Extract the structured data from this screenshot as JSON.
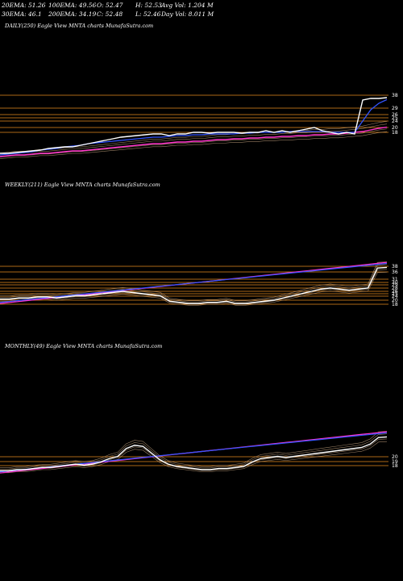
{
  "header": {
    "ema20": "20EMA: 51.26",
    "ema100": "100EMA: 49.56",
    "open": "O: 52.47",
    "high": "H: 52.53",
    "avgvol": "Avg Vol: 1.204 M",
    "ema30": "30EMA: 46.1",
    "ema200": "200EMA: 34.19",
    "close": "C: 52.48",
    "low": "L: 52.46",
    "dayvol": "Day Vol: 8.011 M"
  },
  "panels": {
    "daily": {
      "title": "DAILY(250) Eagle   View  MNTA charts MunafaSutra.com"
    },
    "weekly": {
      "title": "WEEKLY(211) Eagle   View  MNTA charts MunafaSutra.com"
    },
    "monthly": {
      "title": "MONTHLY(49) Eagle   View  MNTA charts MunafaSutra.com"
    }
  },
  "colors": {
    "background": "#000000",
    "price": "#ffffff",
    "ema_fast": "#3355ff",
    "ema_slow": "#ff33cc",
    "level_lines": "#cc7a1a",
    "ma_thin": "#d9b38c"
  },
  "chart_data": [
    {
      "type": "line",
      "name": "daily",
      "series": [
        {
          "values": [
            18,
            18,
            18.5,
            19,
            19.5,
            20,
            21,
            21.5,
            22,
            22,
            23,
            24,
            25,
            26,
            27,
            28,
            28.5,
            29,
            29.5,
            30,
            30,
            29,
            30,
            30,
            31,
            31,
            30.5,
            31,
            31,
            31,
            30.5,
            31,
            31,
            32,
            31,
            32,
            31,
            32,
            33,
            34,
            32,
            31,
            30,
            31,
            30,
            51,
            52,
            52,
            52.5
          ]
        },
        {
          "values": [
            17,
            17.5,
            18,
            18.5,
            19,
            20,
            20.5,
            21,
            22,
            22.5,
            23,
            24,
            24.5,
            25,
            25.5,
            26,
            26.5,
            27,
            27.5,
            28,
            28,
            28.5,
            29,
            29,
            29.5,
            29.5,
            30,
            30,
            30,
            30,
            30.5,
            30.5,
            31,
            31,
            31,
            31,
            31.5,
            31.5,
            31.5,
            31.5,
            31.5,
            31,
            31,
            31,
            31,
            38,
            45,
            49,
            51.3
          ]
        },
        {
          "values": [
            16,
            16.5,
            17,
            17,
            17.5,
            18,
            18,
            18.5,
            19,
            19.5,
            19.5,
            20,
            20.5,
            21,
            21.5,
            22,
            22.5,
            23,
            23.5,
            24,
            24,
            24.5,
            25,
            25,
            25.5,
            25.5,
            26,
            26.5,
            26.5,
            27,
            27,
            27.5,
            27.5,
            28,
            28,
            28.5,
            28.5,
            29,
            29,
            29.5,
            29.5,
            30,
            30,
            30.5,
            31,
            31.5,
            32.5,
            33.5,
            34.2
          ]
        }
      ],
      "levels": [
        "38",
        "29",
        "26",
        "25",
        "24",
        "20",
        "18"
      ]
    },
    {
      "type": "line",
      "name": "weekly",
      "series": [
        {
          "values": [
            24,
            24,
            25,
            25,
            26,
            26,
            25,
            26,
            27,
            27,
            28,
            29,
            30,
            31,
            30,
            29,
            28,
            27,
            22,
            21,
            20,
            20,
            21,
            21,
            22,
            20,
            20,
            21,
            22,
            23,
            25,
            27,
            29,
            31,
            33,
            34,
            33,
            32,
            33,
            34,
            52,
            52.5
          ]
        }
      ],
      "levels": [
        "38",
        "36",
        "31",
        "30",
        "29",
        "28",
        "26",
        "25",
        "24",
        "20",
        "18"
      ]
    },
    {
      "type": "line",
      "name": "monthly",
      "series": [
        {
          "values": [
            22,
            22,
            23,
            23,
            24,
            25,
            25,
            26,
            27,
            28,
            27,
            28,
            30,
            33,
            35,
            42,
            45,
            44,
            38,
            32,
            28,
            26,
            25,
            24,
            23,
            23,
            24,
            24,
            25,
            26,
            30,
            33,
            34,
            35,
            34,
            35,
            36,
            37,
            38,
            39,
            40,
            41,
            42,
            43,
            46,
            52,
            52.5
          ]
        }
      ],
      "levels": [
        "20",
        "19",
        "18"
      ]
    }
  ]
}
